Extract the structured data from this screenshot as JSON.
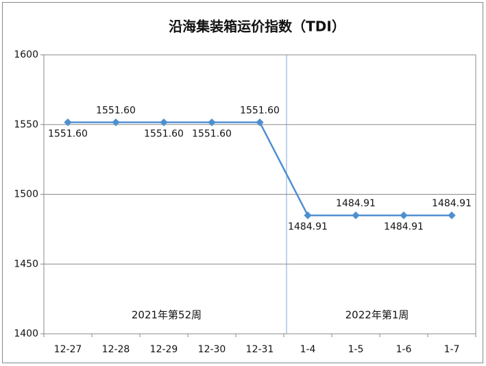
{
  "chart_data": {
    "type": "line",
    "title": "沿海集装箱运价指数（TDI）",
    "categories": [
      "12-27",
      "12-28",
      "12-29",
      "12-30",
      "12-31",
      "1-4",
      "1-5",
      "1-6",
      "1-7"
    ],
    "values": [
      1551.6,
      1551.6,
      1551.6,
      1551.6,
      1551.6,
      1484.91,
      1484.91,
      1484.91,
      1484.91
    ],
    "value_labels": [
      "1551.60",
      "1551.60",
      "1551.60",
      "1551.60",
      "1551.60",
      "1484.91",
      "1484.91",
      "1484.91",
      "1484.91"
    ],
    "color": "#4f8fd0",
    "ylim": [
      1400,
      1600
    ],
    "yticks": [
      1400,
      1450,
      1500,
      1550,
      1600
    ],
    "grid": true,
    "annotations": [
      "2021年第52周",
      "2022年第1周"
    ]
  }
}
